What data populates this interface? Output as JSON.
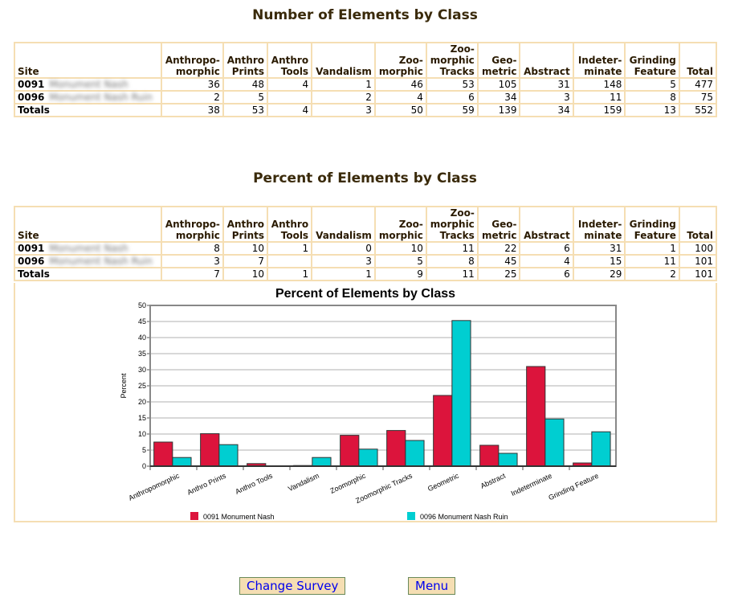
{
  "table1": {
    "title": "Number of Elements by Class",
    "headers": [
      "Site",
      "Anthropo-\nmorphic",
      "Anthro\nPrints",
      "Anthro\nTools",
      "Vandalism",
      "Zoo-\nmorphic",
      "Zoo-\nmorphic\nTracks",
      "Geo-\nmetric",
      "Abstract",
      "Indeter-\nminate",
      "Grinding\nFeature",
      "Total"
    ],
    "rows": [
      {
        "site": "0091",
        "name": "Monument Nash",
        "cells": [
          "36",
          "48",
          "4",
          "1",
          "46",
          "53",
          "105",
          "31",
          "148",
          "5",
          "477"
        ]
      },
      {
        "site": "0096",
        "name": "Monument Nash Ruin",
        "cells": [
          "2",
          "5",
          "",
          "2",
          "4",
          "6",
          "34",
          "3",
          "11",
          "8",
          "75"
        ]
      },
      {
        "site": "Totals",
        "name": "",
        "cells": [
          "38",
          "53",
          "4",
          "3",
          "50",
          "59",
          "139",
          "34",
          "159",
          "13",
          "552"
        ]
      }
    ]
  },
  "table2": {
    "title": "Percent of Elements by Class",
    "headers": [
      "Site",
      "Anthropo-\nmorphic",
      "Anthro\nPrints",
      "Anthro\nTools",
      "Vandalism",
      "Zoo-\nmorphic",
      "Zoo-\nmorphic\nTracks",
      "Geo-\nmetric",
      "Abstract",
      "Indeter-\nminate",
      "Grinding\nFeature",
      "Total"
    ],
    "rows": [
      {
        "site": "0091",
        "name": "Monument Nash",
        "cells": [
          "8",
          "10",
          "1",
          "0",
          "10",
          "11",
          "22",
          "6",
          "31",
          "1",
          "100"
        ]
      },
      {
        "site": "0096",
        "name": "Monument Nash Ruin",
        "cells": [
          "3",
          "7",
          "",
          "3",
          "5",
          "8",
          "45",
          "4",
          "15",
          "11",
          "101"
        ]
      },
      {
        "site": "Totals",
        "name": "",
        "cells": [
          "7",
          "10",
          "1",
          "1",
          "9",
          "11",
          "25",
          "6",
          "29",
          "2",
          "101"
        ]
      }
    ]
  },
  "chart_data": {
    "type": "bar",
    "title": "Percent of Elements by Class",
    "xlabel": "",
    "ylabel": "Percent",
    "ylim": [
      0,
      50
    ],
    "yticks": [
      "0",
      "5",
      "10",
      "15",
      "20",
      "25",
      "30",
      "35",
      "40",
      "45",
      "50"
    ],
    "categories": [
      "Anthropomorphic",
      "Anthro Prints",
      "Anthro Tools",
      "Vandalism",
      "Zoomorphic",
      "Zoomorphic Tracks",
      "Geometric",
      "Abstract",
      "Indeterminate",
      "Grinding Feature"
    ],
    "series": [
      {
        "name": "0091 Monument Nash",
        "color": "#dc143c",
        "values": [
          7.5,
          10.1,
          0.8,
          0.2,
          9.6,
          11.1,
          22.0,
          6.5,
          31.0,
          1.0
        ]
      },
      {
        "name": "0096 Monument Nash Ruin",
        "color": "#00ced1",
        "values": [
          2.7,
          6.7,
          0,
          2.7,
          5.3,
          8.0,
          45.3,
          4.0,
          14.7,
          10.7
        ]
      }
    ],
    "legend": "bottom",
    "grid": true
  },
  "buttons": {
    "change_survey": "Change Survey",
    "menu": "Menu"
  }
}
